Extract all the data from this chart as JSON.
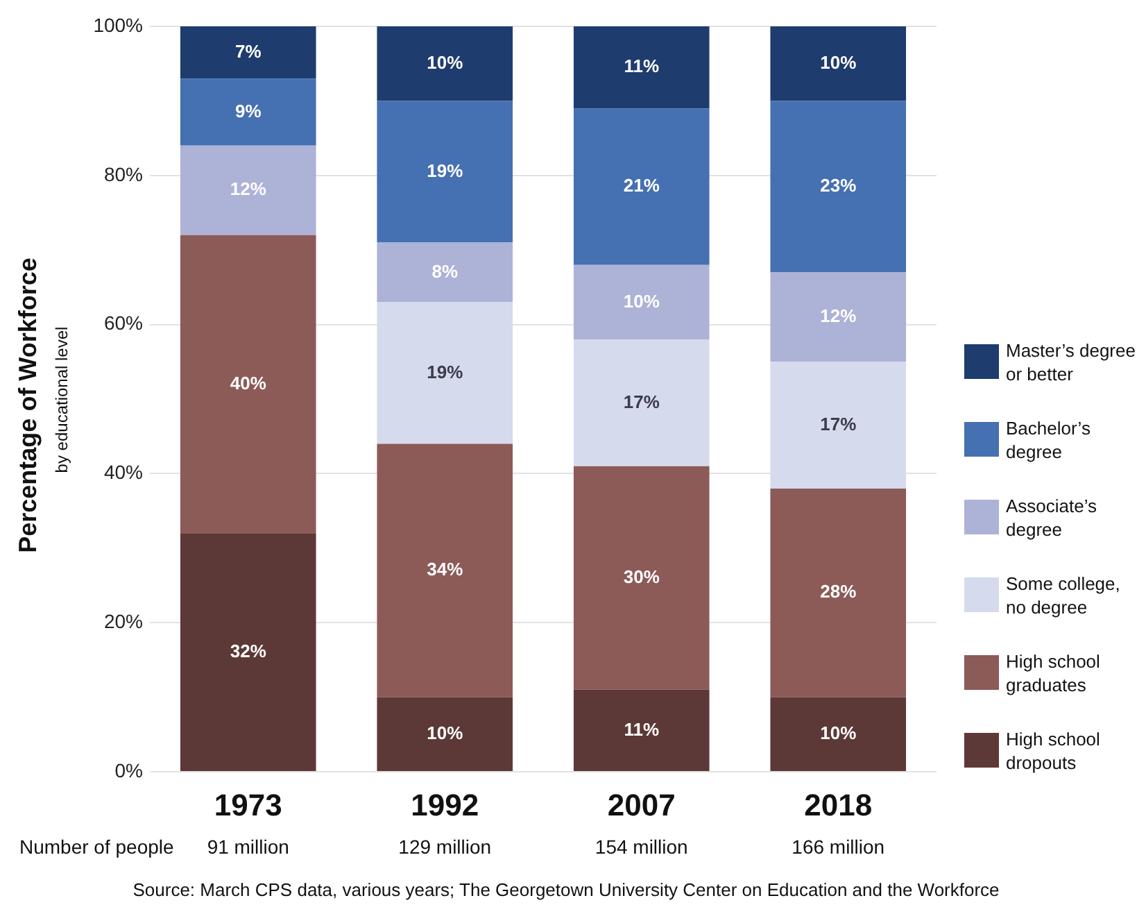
{
  "chart_data": {
    "type": "bar",
    "stacked": true,
    "ylabel": "Percentage of Workforce",
    "categories": [
      "1973",
      "1992",
      "2007",
      "2018"
    ],
    "series": [
      {
        "name": "High school dropouts",
        "color": "#5c3936",
        "values": [
          32,
          10,
          11,
          10
        ],
        "value_labels": [
          "32%",
          "10%",
          "11%",
          "10%"
        ]
      },
      {
        "name": "High school graduates",
        "color": "#8c5a57",
        "values": [
          40,
          34,
          30,
          28
        ],
        "value_labels": [
          "40%",
          "34%",
          "30%",
          "28%"
        ]
      },
      {
        "name": "Some college, no degree",
        "color": "#d6daed",
        "values": [
          null,
          19,
          17,
          17
        ],
        "value_labels": [
          null,
          "19%",
          "17%",
          "17%"
        ]
      },
      {
        "name": "Associate’s degree",
        "color": "#adb2d7",
        "values": [
          12,
          8,
          10,
          12
        ],
        "value_labels": [
          "12%",
          "8%",
          "10%",
          "12%"
        ]
      },
      {
        "name": "Bachelor’s degree",
        "color": "#4570b1",
        "values": [
          9,
          19,
          21,
          23
        ],
        "value_labels": [
          "9%",
          "19%",
          "21%",
          "23%"
        ]
      },
      {
        "name": "Master’s degree or better",
        "color": "#1e3c6d",
        "values": [
          7,
          10,
          11,
          10
        ],
        "value_labels": [
          "7%",
          "10%",
          "11%",
          "10%"
        ]
      }
    ],
    "ylim": [
      0,
      100
    ],
    "yticks": [
      {
        "value": 0,
        "label": "0%"
      },
      {
        "value": 20,
        "label": "20%"
      },
      {
        "value": 40,
        "label": "40%"
      },
      {
        "value": 60,
        "label": "60%"
      },
      {
        "value": 80,
        "label": "80%"
      },
      {
        "value": 100,
        "label": "100%"
      }
    ],
    "grid": "y",
    "legend": "right",
    "annotations": [
      "by educational level",
      "Number of people",
      "91 million",
      "129 million",
      "154 million",
      "166 million",
      "Source: March CPS data, various years; The Georgetown University Center on Education and the Workforce"
    ]
  }
}
